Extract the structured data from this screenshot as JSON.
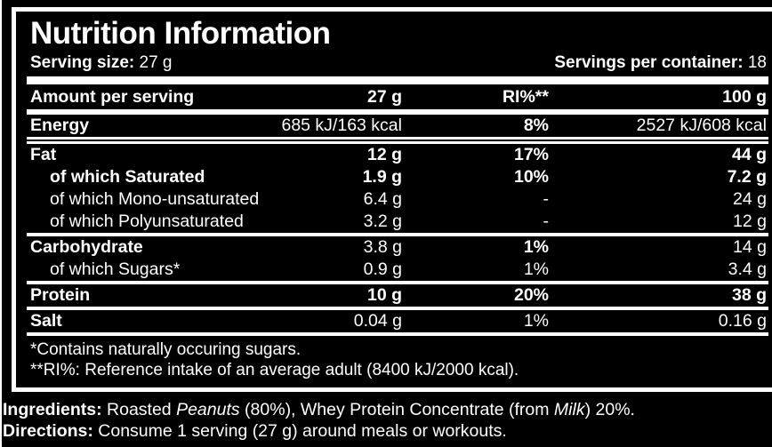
{
  "colors": {
    "background": "#000000",
    "foreground": "#ffffff"
  },
  "label": {
    "title": "Nutrition Information",
    "serving_size_label": "Serving size:",
    "serving_size_value": " 27 g",
    "servings_per_container_label": "Servings per container:",
    "servings_per_container_value": " 18",
    "table": {
      "header": {
        "name": "Amount per serving",
        "amount": "27 g",
        "ri": "RI%**",
        "per100": "100 g"
      },
      "rows": [
        {
          "name": "Energy",
          "amount": "685 kJ/163 kcal",
          "ri": "8%",
          "per100": "2527 kJ/608 kcal"
        },
        {
          "name": "Fat",
          "amount": "12 g",
          "ri": "17%",
          "per100": "44 g"
        },
        {
          "name": "of which Saturated",
          "amount": "1.9 g",
          "ri": "10%",
          "per100": "7.2 g"
        },
        {
          "name": "of which Mono-unsaturated",
          "amount": "6.4 g",
          "ri": "-",
          "per100": "24 g"
        },
        {
          "name": "of which Polyunsaturated",
          "amount": "3.2 g",
          "ri": "-",
          "per100": "12 g"
        },
        {
          "name": "Carbohydrate",
          "amount": "3.8 g",
          "ri": "1%",
          "per100": "14 g"
        },
        {
          "name": "of which Sugars*",
          "amount": "0.9 g",
          "ri": "1%",
          "per100": "3.4 g"
        },
        {
          "name": "Protein",
          "amount": "10 g",
          "ri": "20%",
          "per100": "38 g"
        },
        {
          "name": "Salt",
          "amount": "0.04 g",
          "ri": "1%",
          "per100": "0.16 g"
        }
      ]
    },
    "footnotes": {
      "line1": "*Contains naturally occuring sugars.",
      "line2": "**RI%: Reference intake of an average adult (8400 kJ/2000 kcal)."
    }
  },
  "bottom": {
    "ingredients": {
      "label": "Ingredients:",
      "part1": " Roasted ",
      "italic1": "Peanuts",
      "part2": " (80%), Whey Protein Concentrate (from ",
      "italic2": "Milk",
      "part3": ") 20%."
    },
    "directions": {
      "label": "Directions:",
      "text": " Consume 1 serving (27 g) around meals or workouts."
    }
  }
}
